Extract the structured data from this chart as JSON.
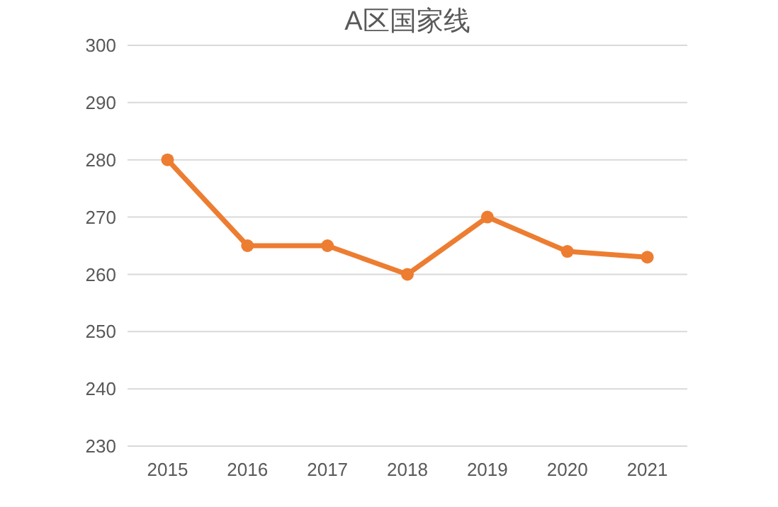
{
  "chart_data": {
    "type": "line",
    "title": "A区国家线",
    "categories": [
      "2015",
      "2016",
      "2017",
      "2018",
      "2019",
      "2020",
      "2021"
    ],
    "series": [
      {
        "color": "#ed7d31",
        "values": [
          280,
          265,
          265,
          260,
          270,
          264,
          263
        ]
      }
    ],
    "ylim": [
      230,
      300
    ],
    "yticks": [
      230,
      240,
      250,
      260,
      270,
      280,
      290,
      300
    ],
    "grid": "y",
    "marker": "circle",
    "line_style": "solid"
  }
}
